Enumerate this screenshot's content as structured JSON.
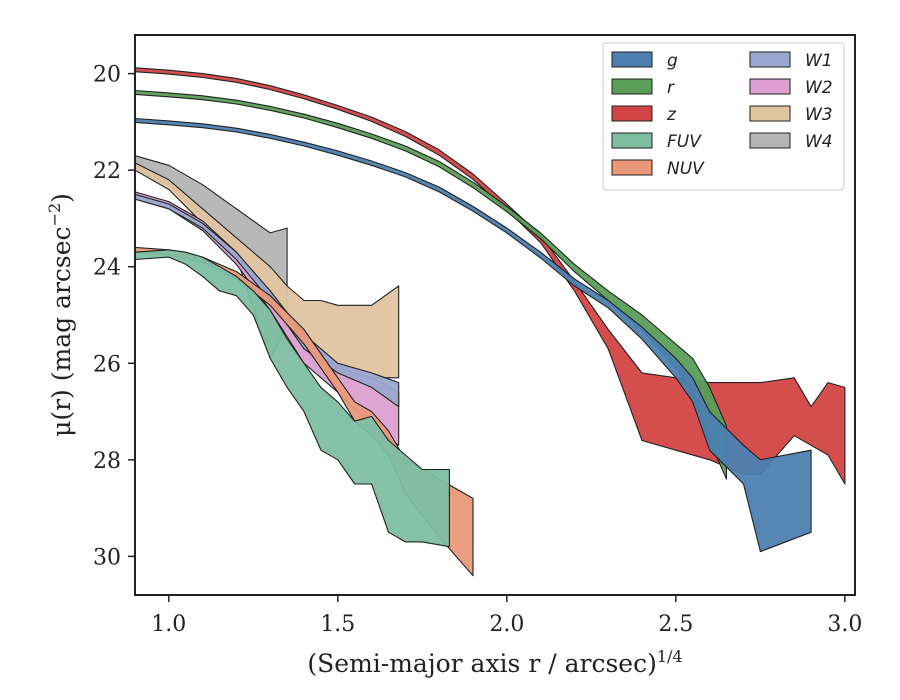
{
  "chart_data": {
    "type": "area",
    "xlabel": "(Semi-major axis r / arcsec)",
    "xlabel_exponent": "1/4",
    "ylabel": "μ(r) (mag arcsec",
    "ylabel_exponent": "−2",
    "ylabel_close": ")",
    "xlim": [
      0.9,
      3.03
    ],
    "ylim": [
      30.8,
      19.2
    ],
    "y_inverted": true,
    "xticks": [
      1.0,
      1.5,
      2.0,
      2.5,
      3.0
    ],
    "xtick_labels": [
      "1.0",
      "1.5",
      "2.0",
      "2.5",
      "3.0"
    ],
    "yticks": [
      20,
      22,
      24,
      26,
      28,
      30
    ],
    "ytick_labels": [
      "20",
      "22",
      "24",
      "26",
      "28",
      "30"
    ],
    "grid": false,
    "legend_position": "top-right",
    "legend_columns": 2,
    "series": [
      {
        "name": "g",
        "color": "#4c7fb0",
        "x": [
          0.9,
          1.0,
          1.1,
          1.2,
          1.3,
          1.4,
          1.5,
          1.6,
          1.7,
          1.8,
          1.9,
          2.0,
          2.1,
          2.2,
          2.3,
          2.4,
          2.5,
          2.55,
          2.6,
          2.7,
          2.75,
          2.9
        ],
        "lower": [
          20.93,
          20.98,
          21.04,
          21.13,
          21.26,
          21.42,
          21.6,
          21.81,
          22.05,
          22.35,
          22.75,
          23.2,
          23.7,
          24.25,
          24.7,
          25.25,
          25.9,
          26.3,
          27.0,
          27.7,
          28.0,
          27.8
        ],
        "upper": [
          21.01,
          21.06,
          21.12,
          21.21,
          21.34,
          21.5,
          21.69,
          21.9,
          22.14,
          22.45,
          22.85,
          23.3,
          23.82,
          24.4,
          24.85,
          25.5,
          26.3,
          26.8,
          27.8,
          28.5,
          29.9,
          29.5
        ]
      },
      {
        "name": "r",
        "color": "#5a9e5a",
        "x": [
          0.9,
          1.0,
          1.1,
          1.2,
          1.3,
          1.4,
          1.5,
          1.6,
          1.7,
          1.8,
          1.9,
          2.0,
          2.1,
          2.2,
          2.3,
          2.4,
          2.5,
          2.55,
          2.6,
          2.65
        ],
        "lower": [
          20.35,
          20.4,
          20.46,
          20.55,
          20.68,
          20.84,
          21.03,
          21.25,
          21.5,
          21.82,
          22.25,
          22.75,
          23.3,
          23.95,
          24.5,
          25.0,
          25.6,
          25.9,
          26.5,
          27.3
        ],
        "upper": [
          20.43,
          20.48,
          20.54,
          20.63,
          20.76,
          20.92,
          21.12,
          21.34,
          21.6,
          21.93,
          22.36,
          22.86,
          23.42,
          24.1,
          24.7,
          25.3,
          26.1,
          26.6,
          27.6,
          28.4
        ]
      },
      {
        "name": "z",
        "color": "#d24444",
        "x": [
          0.9,
          1.0,
          1.1,
          1.2,
          1.3,
          1.4,
          1.5,
          1.6,
          1.7,
          1.8,
          1.9,
          2.0,
          2.1,
          2.2,
          2.3,
          2.4,
          2.5,
          2.6,
          2.7,
          2.75,
          2.85,
          2.9,
          2.95,
          3.0
        ],
        "lower": [
          19.88,
          19.93,
          20.0,
          20.1,
          20.25,
          20.44,
          20.66,
          20.9,
          21.2,
          21.58,
          22.08,
          22.7,
          23.35,
          24.3,
          25.3,
          26.2,
          26.3,
          26.4,
          26.4,
          26.4,
          26.3,
          26.9,
          26.4,
          26.5
        ],
        "upper": [
          19.96,
          20.01,
          20.08,
          20.18,
          20.33,
          20.52,
          20.74,
          20.99,
          21.3,
          21.69,
          22.19,
          22.82,
          23.5,
          24.5,
          25.7,
          27.6,
          27.8,
          28.0,
          28.3,
          28.3,
          27.5,
          27.7,
          27.9,
          28.5
        ]
      },
      {
        "name": "FUV",
        "color": "#7dbea3",
        "x": [
          0.9,
          1.0,
          1.05,
          1.1,
          1.15,
          1.2,
          1.25,
          1.3,
          1.35,
          1.4,
          1.45,
          1.5,
          1.55,
          1.6,
          1.65,
          1.7,
          1.75,
          1.83
        ],
        "lower": [
          23.7,
          23.65,
          23.7,
          23.8,
          24.0,
          24.2,
          24.5,
          24.9,
          25.5,
          26.0,
          26.5,
          26.8,
          27.2,
          27.1,
          27.6,
          27.9,
          28.2,
          28.2
        ],
        "upper": [
          23.85,
          23.8,
          23.95,
          24.2,
          24.5,
          24.6,
          25.0,
          25.9,
          26.5,
          27.0,
          27.8,
          28.0,
          28.5,
          28.5,
          29.5,
          29.7,
          29.7,
          29.8
        ]
      },
      {
        "name": "NUV",
        "color": "#e9997a",
        "x": [
          0.9,
          1.0,
          1.1,
          1.2,
          1.3,
          1.4,
          1.5,
          1.55,
          1.6,
          1.65,
          1.7,
          1.8,
          1.9
        ],
        "lower": [
          23.6,
          23.65,
          23.8,
          24.1,
          24.6,
          25.3,
          26.3,
          26.8,
          27.0,
          27.4,
          28.0,
          28.4,
          28.8
        ],
        "upper": [
          23.7,
          23.75,
          23.9,
          24.25,
          24.8,
          25.6,
          26.6,
          27.2,
          27.5,
          27.9,
          28.7,
          29.6,
          30.4
        ]
      },
      {
        "name": "W1",
        "color": "#9aa8cf",
        "x": [
          0.9,
          1.0,
          1.1,
          1.2,
          1.3,
          1.4,
          1.5,
          1.6,
          1.68
        ],
        "lower": [
          22.5,
          22.7,
          23.1,
          23.7,
          24.5,
          25.4,
          26.0,
          26.2,
          26.4
        ],
        "upper": [
          22.6,
          22.8,
          23.2,
          23.85,
          24.7,
          25.7,
          26.2,
          26.5,
          26.9
        ]
      },
      {
        "name": "W2",
        "color": "#dda0d0",
        "x": [
          0.9,
          1.0,
          1.1,
          1.2,
          1.3,
          1.4,
          1.5,
          1.6,
          1.68
        ],
        "lower": [
          22.45,
          22.65,
          23.05,
          23.7,
          24.6,
          25.6,
          26.1,
          26.3,
          26.6
        ],
        "upper": [
          22.6,
          22.8,
          23.25,
          23.95,
          24.9,
          26.0,
          26.6,
          27.3,
          27.7
        ]
      },
      {
        "name": "W3",
        "color": "#e0c4a2",
        "x": [
          0.9,
          1.0,
          1.1,
          1.2,
          1.3,
          1.35,
          1.4,
          1.45,
          1.5,
          1.6,
          1.68
        ],
        "lower": [
          21.85,
          22.2,
          22.8,
          23.4,
          24.0,
          24.4,
          24.7,
          24.7,
          24.8,
          24.8,
          24.4
        ],
        "upper": [
          22.0,
          22.4,
          23.1,
          23.8,
          25.9,
          25.2,
          25.6,
          26.3,
          26.3,
          26.3,
          26.3
        ]
      },
      {
        "name": "W4",
        "color": "#b4b4b4",
        "x": [
          0.9,
          1.0,
          1.1,
          1.2,
          1.3,
          1.35
        ],
        "lower": [
          21.7,
          21.9,
          22.3,
          22.8,
          23.3,
          23.2
        ],
        "upper": [
          21.95,
          22.3,
          22.95,
          23.6,
          25.3,
          25.2
        ]
      }
    ]
  }
}
